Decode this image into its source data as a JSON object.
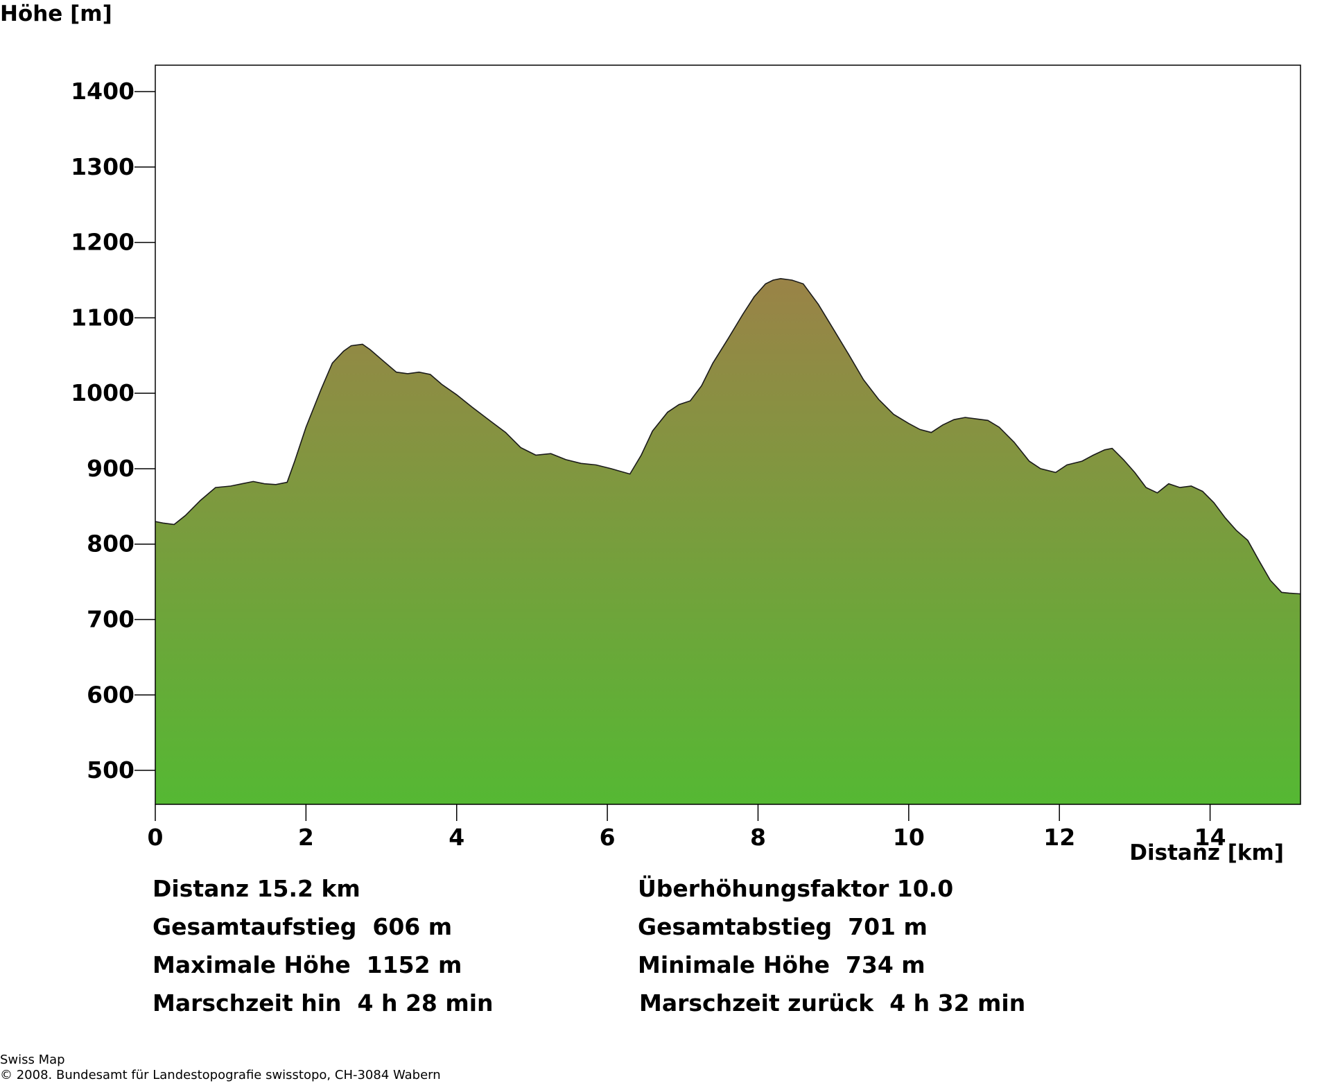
{
  "chart_data": {
    "type": "area",
    "ylabel": "Höhe [m]",
    "xlabel": "Distanz [km]",
    "xlim": [
      0,
      15.2
    ],
    "ylim": [
      455,
      1435
    ],
    "x_ticks": [
      "0",
      "2",
      "4",
      "6",
      "8",
      "10",
      "12",
      "14"
    ],
    "y_ticks": [
      "500",
      "600",
      "700",
      "800",
      "900",
      "1000",
      "1100",
      "1200",
      "1300",
      "1400"
    ],
    "grid": false,
    "fill_top_color": "#9a8347",
    "fill_bottom_color": "#55b833",
    "outline_color": "#1a1a1a",
    "series": [
      {
        "x": [
          0,
          0.1,
          0.25,
          0.4,
          0.6,
          0.8,
          1.0,
          1.15,
          1.3,
          1.45,
          1.6,
          1.75,
          1.85,
          2.0,
          2.2,
          2.35,
          2.5,
          2.6,
          2.75,
          2.85,
          3.0,
          3.2,
          3.35,
          3.5,
          3.65,
          3.8,
          4.0,
          4.2,
          4.45,
          4.65,
          4.85,
          5.05,
          5.25,
          5.45,
          5.65,
          5.85,
          6.05,
          6.3,
          6.45,
          6.6,
          6.8,
          6.95,
          7.1,
          7.25,
          7.4,
          7.6,
          7.8,
          7.95,
          8.1,
          8.2,
          8.3,
          8.45,
          8.6,
          8.8,
          9.0,
          9.2,
          9.4,
          9.6,
          9.8,
          10.0,
          10.15,
          10.3,
          10.45,
          10.6,
          10.75,
          10.9,
          11.05,
          11.2,
          11.4,
          11.6,
          11.75,
          11.95,
          12.1,
          12.3,
          12.45,
          12.6,
          12.7,
          12.85,
          13.0,
          13.15,
          13.3,
          13.45,
          13.6,
          13.75,
          13.9,
          14.05,
          14.2,
          14.35,
          14.5,
          14.65,
          14.8,
          14.95,
          15.05,
          15.2
        ],
        "values": [
          830,
          828,
          826,
          838,
          858,
          875,
          877,
          880,
          883,
          880,
          879,
          882,
          910,
          955,
          1005,
          1040,
          1056,
          1063,
          1065,
          1058,
          1045,
          1028,
          1026,
          1028,
          1025,
          1012,
          998,
          982,
          963,
          948,
          928,
          918,
          920,
          912,
          907,
          905,
          900,
          893,
          918,
          950,
          975,
          985,
          990,
          1010,
          1040,
          1072,
          1105,
          1128,
          1145,
          1150,
          1152,
          1150,
          1145,
          1118,
          1085,
          1052,
          1018,
          992,
          972,
          960,
          952,
          948,
          958,
          965,
          968,
          966,
          964,
          955,
          935,
          910,
          900,
          895,
          905,
          910,
          918,
          925,
          927,
          912,
          895,
          875,
          868,
          880,
          875,
          877,
          870,
          855,
          835,
          818,
          805,
          778,
          752,
          736,
          735,
          734
        ]
      }
    ]
  },
  "stats": {
    "distanz": "Distanz 15.2 km",
    "ueberhoehung": "Überhöhungsfaktor 10.0",
    "aufstieg": "Gesamtaufstieg  606 m",
    "abstieg": "Gesamtabstieg  701 m",
    "max_hoehe": "Maximale Höhe  1152 m",
    "min_hoehe": "Minimale Höhe  734 m",
    "zeit_hin": "Marschzeit hin  4 h 28 min",
    "zeit_zurueck": "Marschzeit zurück  4 h 32 min"
  },
  "footer": {
    "line1": "Swiss Map",
    "line2": "© 2008. Bundesamt für Landestopografie swisstopo, CH-3084 Wabern"
  }
}
